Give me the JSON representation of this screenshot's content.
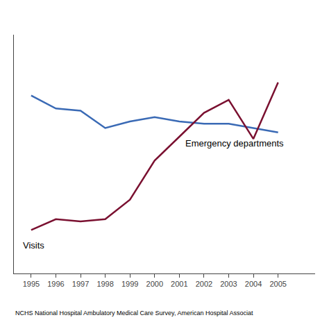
{
  "chart_data": {
    "type": "line",
    "x": [
      1995,
      1996,
      1997,
      1998,
      1999,
      2000,
      2001,
      2002,
      2003,
      2004,
      2005
    ],
    "series": [
      {
        "color": "#3a6ab5",
        "values": [
          0.82,
          0.76,
          0.75,
          0.67,
          0.7,
          0.72,
          0.7,
          0.69,
          0.69,
          0.67,
          0.65
        ]
      },
      {
        "color": "#7a1030",
        "values": [
          0.2,
          0.25,
          0.24,
          0.25,
          0.34,
          0.52,
          0.63,
          0.74,
          0.8,
          0.62,
          0.88
        ]
      }
    ],
    "annotations": [
      {
        "text": "Emergency departments",
        "x": 2001.2,
        "y": 0.6
      },
      {
        "text": "Visits",
        "x": 1994.6,
        "y": 0.13
      }
    ],
    "source": "NCHS National Hospital Ambulatory Medical Care Survey, American Hospital Associat",
    "xlim": [
      1994.3,
      2006.5
    ],
    "xticks": [
      1995,
      1996,
      1997,
      1998,
      1999,
      2000,
      2001,
      2002,
      2003,
      2004,
      2005
    ],
    "ylim": [
      0.0,
      1.1
    ],
    "yticks": [],
    "tick_labels": "x",
    "grid": false
  }
}
